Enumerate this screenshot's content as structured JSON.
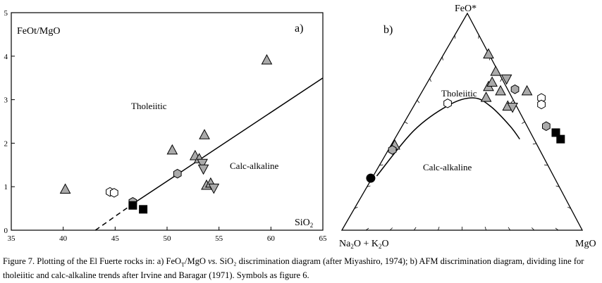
{
  "chart_data": [
    {
      "type": "scatter",
      "panel_label": "a)",
      "xlabel": "SiO2",
      "ylabel": "FeOt/MgO",
      "xlim": [
        35,
        65
      ],
      "ylim": [
        0,
        5
      ],
      "xticks": [
        35,
        40,
        45,
        50,
        55,
        60,
        65
      ],
      "yticks": [
        0,
        1,
        2,
        3,
        4,
        5
      ],
      "grid": false,
      "field_labels": [
        "Tholeiitic",
        "Calc-alkaline"
      ],
      "dividing_line": {
        "solid": [
          [
            46.8,
            0.62
          ],
          [
            65,
            3.5
          ]
        ],
        "dashed": [
          [
            43.1,
            0
          ],
          [
            46.8,
            0.62
          ]
        ]
      },
      "series": [
        {
          "symbol": "triangle-up",
          "fill": "#aaaaaa",
          "x": [
            40.2,
            50.5,
            52.7,
            53.1,
            53.6,
            59.6,
            53.8,
            54.2
          ],
          "y": [
            0.93,
            1.83,
            1.7,
            1.63,
            2.18,
            3.9,
            1.02,
            1.07
          ]
        },
        {
          "symbol": "triangle-down",
          "fill": "#aaaaaa",
          "x": [
            53.4,
            53.5,
            54.5
          ],
          "y": [
            1.55,
            1.42,
            0.98
          ]
        },
        {
          "symbol": "hexagon",
          "fill": "#aaaaaa",
          "x": [
            46.7,
            51.0
          ],
          "y": [
            0.65,
            1.3
          ]
        },
        {
          "symbol": "hexagon",
          "fill": "#ffffff",
          "x": [
            44.5,
            44.9
          ],
          "y": [
            0.88,
            0.86
          ]
        },
        {
          "symbol": "square",
          "fill": "#000000",
          "x": [
            46.7,
            47.7
          ],
          "y": [
            0.57,
            0.48
          ]
        }
      ]
    },
    {
      "type": "ternary",
      "panel_label": "b)",
      "vertices": {
        "top": "FeO*",
        "left": "Na2O + K2O",
        "right": "MgO"
      },
      "vertex_labels": {
        "top": {
          "main": "FeO*",
          "sub": ""
        },
        "left": {
          "main": "Na",
          "sub": "2",
          "main2": "O + K",
          "sub2": "2",
          "main3": "O"
        },
        "right": {
          "main": "MgO",
          "sub": ""
        }
      },
      "field_labels": [
        "Tholeiitic",
        "Calc-alkaline"
      ],
      "dividing_curve": [
        [
          0.145,
          0.25
        ],
        [
          0.3,
          0.46
        ],
        [
          0.45,
          0.58
        ],
        [
          0.55,
          0.61
        ],
        [
          0.62,
          0.57
        ],
        [
          0.7,
          0.48
        ],
        [
          0.74,
          0.42
        ]
      ],
      "series": [
        {
          "symbol": "triangle-up",
          "fill": "#aaaaaa",
          "points": [
            [
              0.61,
              0.81
            ],
            [
              0.64,
              0.73
            ],
            [
              0.6,
              0.61
            ],
            [
              0.61,
              0.66
            ],
            [
              0.625,
              0.68
            ],
            [
              0.66,
              0.64
            ],
            [
              0.69,
              0.57
            ],
            [
              0.77,
              0.64
            ],
            [
              0.22,
              0.39
            ]
          ]
        },
        {
          "symbol": "triangle-down",
          "fill": "#aaaaaa",
          "points": [
            [
              0.685,
              0.7
            ],
            [
              0.71,
              0.57
            ]
          ]
        },
        {
          "symbol": "hexagon",
          "fill": "#aaaaaa",
          "points": [
            [
              0.72,
              0.65
            ],
            [
              0.21,
              0.37
            ],
            [
              0.85,
              0.48
            ]
          ]
        },
        {
          "symbol": "hexagon",
          "fill": "#ffffff",
          "points": [
            [
              0.44,
              0.585
            ],
            [
              0.83,
              0.61
            ],
            [
              0.83,
              0.58
            ]
          ]
        },
        {
          "symbol": "circle",
          "fill": "#000000",
          "points": [
            [
              0.12,
              0.24
            ]
          ]
        },
        {
          "symbol": "square",
          "fill": "#000000",
          "points": [
            [
              0.89,
              0.45
            ],
            [
              0.91,
              0.42
            ]
          ]
        }
      ]
    }
  ],
  "caption": {
    "prefix": "Figure 7. Plotting of the El Fuerte rocks in: a) FeO",
    "sub": "T",
    "mid1": "/MgO ",
    "vs": "vs.",
    "rest": " SiO₂ discrimination diagram (after Miyashiro, 1974); b) AFM discrimination diagram, dividing line for tholeiitic and calc-alkaline trends after Irvine and Baragar (1971). Symbols as figure 6."
  }
}
